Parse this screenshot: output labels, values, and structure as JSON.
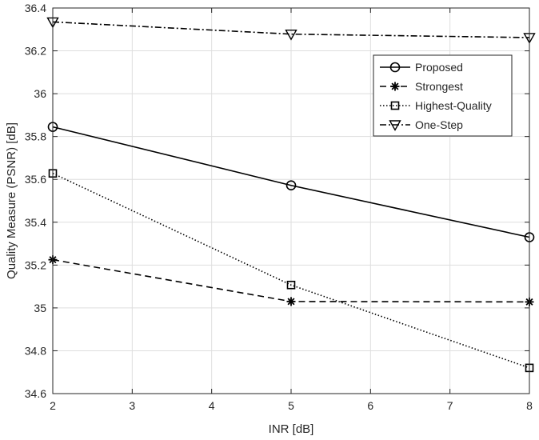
{
  "chart_data": {
    "type": "line",
    "title": "",
    "xlabel": "INR [dB]",
    "ylabel": "Quality Measure (PSNR) [dB]",
    "xlim": [
      2,
      8
    ],
    "ylim": [
      34.6,
      36.4
    ],
    "xticks": [
      2,
      3,
      4,
      5,
      6,
      7,
      8
    ],
    "yticks": [
      34.6,
      34.8,
      35,
      35.2,
      35.4,
      35.6,
      35.8,
      36,
      36.2,
      36.4
    ],
    "ytick_labels": [
      "34.6",
      "34.8",
      "35",
      "35.2",
      "35.4",
      "35.6",
      "35.8",
      "36",
      "36.2",
      "36.4"
    ],
    "grid": true,
    "legend_position": "top-right",
    "x": [
      2,
      5,
      8
    ],
    "series": [
      {
        "name": "Proposed",
        "values": [
          35.845,
          35.572,
          35.33
        ],
        "line_style": "solid",
        "marker": "circle",
        "color": "#000000"
      },
      {
        "name": "Strongest",
        "values": [
          35.225,
          35.03,
          35.028
        ],
        "line_style": "dashed",
        "marker": "asterisk",
        "color": "#000000"
      },
      {
        "name": "Highest-Quality",
        "values": [
          35.628,
          35.107,
          34.72
        ],
        "line_style": "dotted",
        "marker": "square",
        "color": "#000000"
      },
      {
        "name": "One-Step",
        "values": [
          36.335,
          36.278,
          36.262
        ],
        "line_style": "dashdot",
        "marker": "triangle-down",
        "color": "#000000"
      }
    ]
  }
}
